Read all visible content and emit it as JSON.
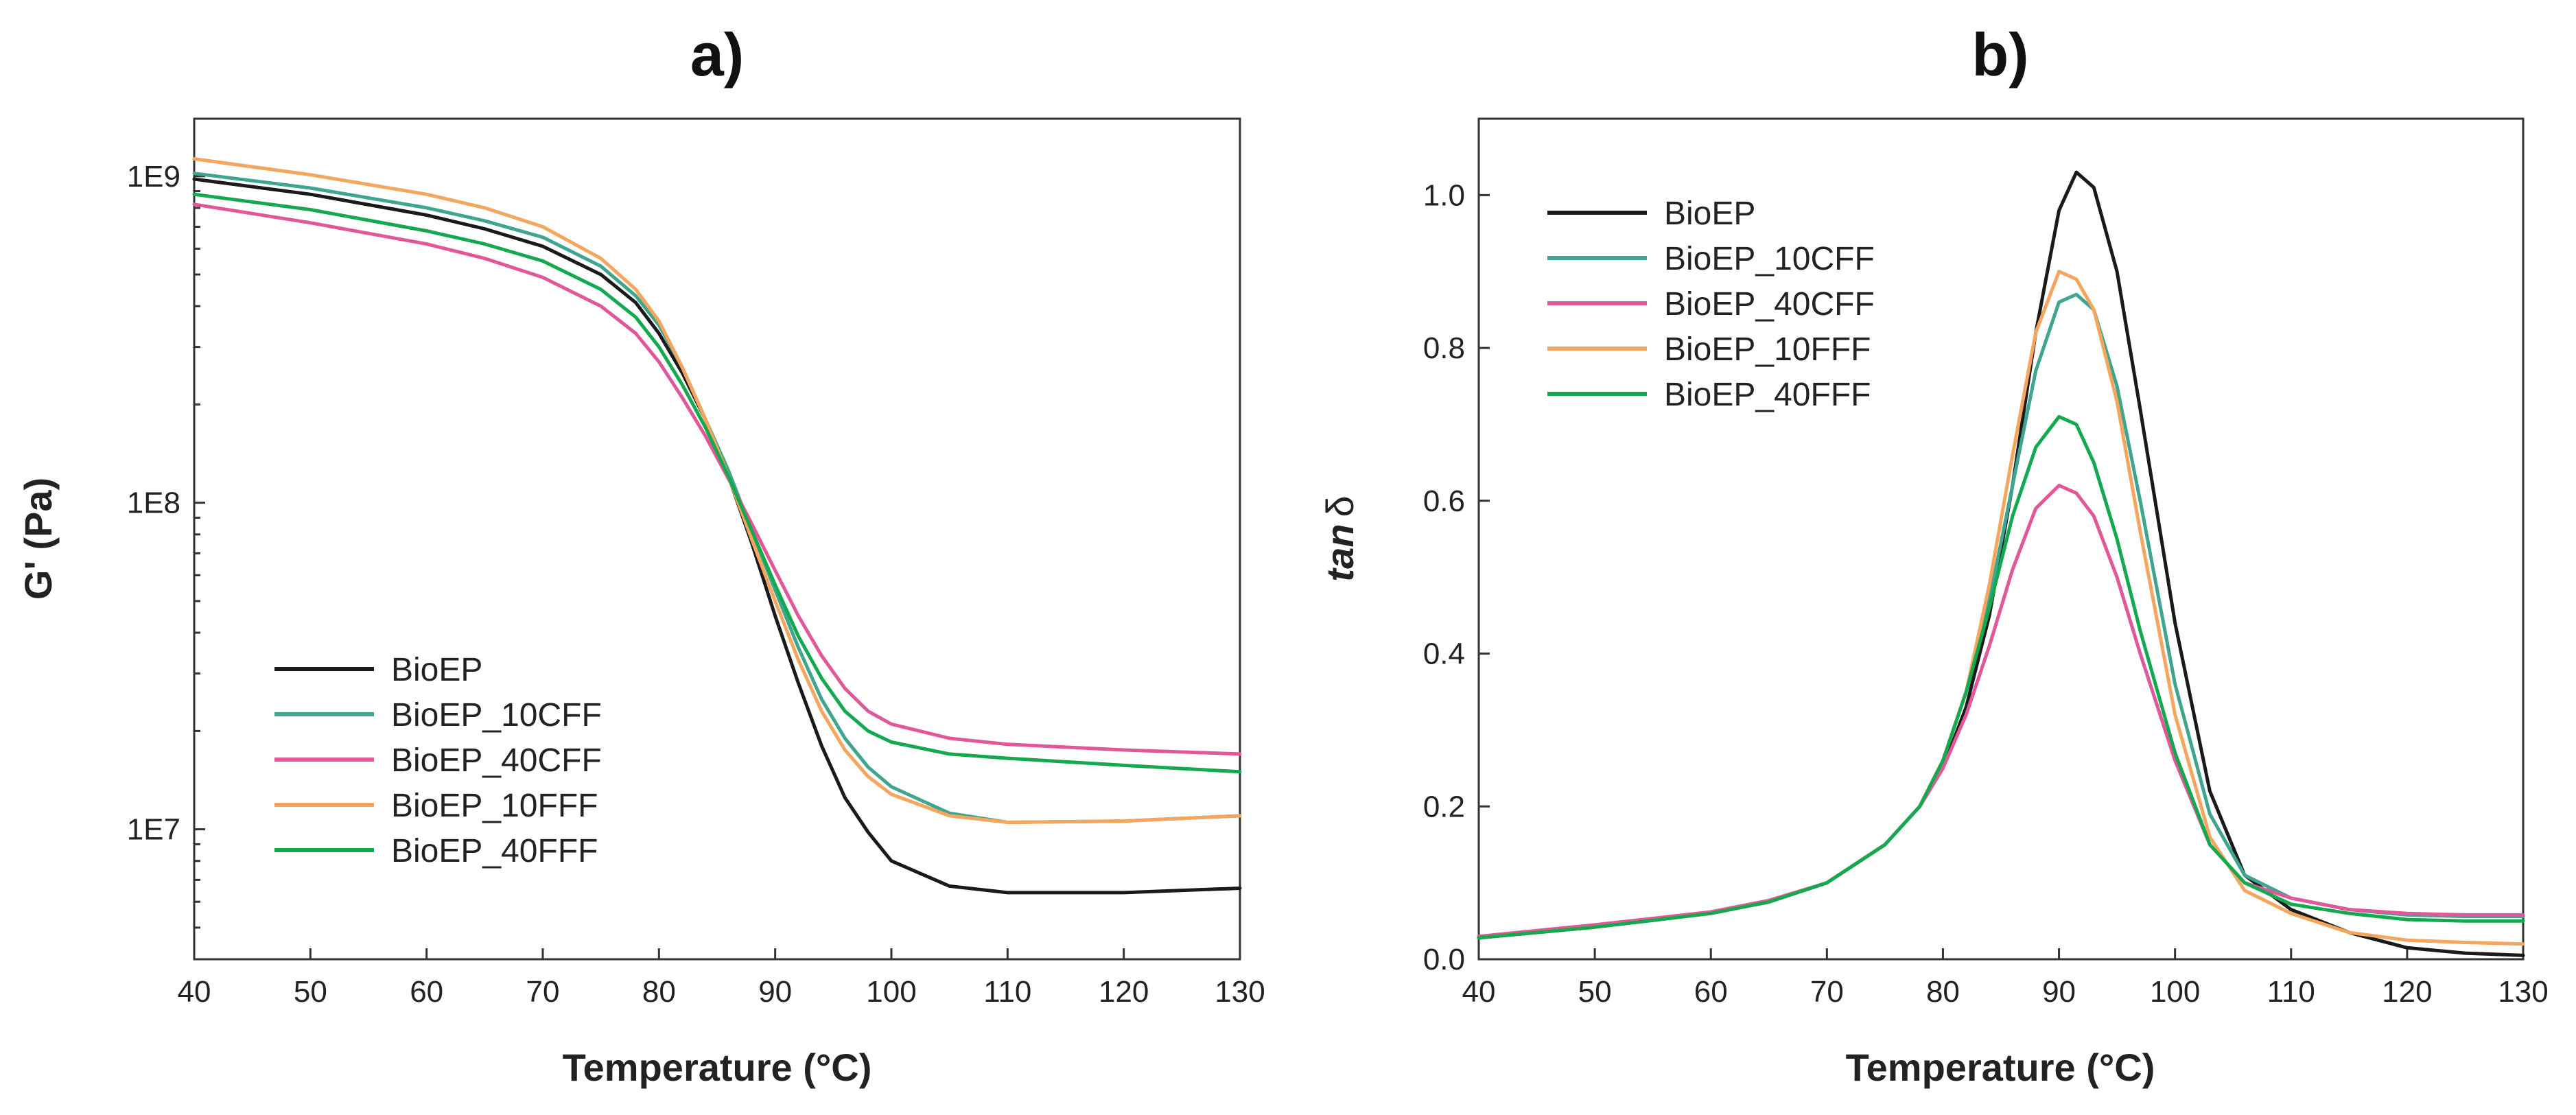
{
  "colors": {
    "BioEP": "#1a1a1a",
    "BioEP_10CFF": "#3fa58e",
    "BioEP_40CFF": "#e0579a",
    "BioEP_10FFF": "#f4a55e",
    "BioEP_40FFF": "#14a84f"
  },
  "chart_data": [
    {
      "type": "line",
      "panel_label": "a)",
      "xlabel": "Temperature (°C)",
      "ylabel": "G' (Pa)",
      "yscale": "log",
      "xlim": [
        40,
        130
      ],
      "ylim": [
        4000000,
        1500000000
      ],
      "xticks": [
        40,
        50,
        60,
        70,
        80,
        90,
        100,
        110,
        120,
        130
      ],
      "xtick_labels": [
        "40",
        "50",
        "60",
        "70",
        "80",
        "90",
        "100",
        "110",
        "120",
        "130"
      ],
      "yticks": [
        10000000,
        100000000,
        1000000000
      ],
      "ytick_labels": [
        "1E7",
        "1E8",
        "1E9"
      ],
      "legend": {
        "position": "lower-left",
        "entries": [
          "BioEP",
          "BioEP_10CFF",
          "BioEP_40CFF",
          "BioEP_10FFF",
          "BioEP_40FFF"
        ]
      },
      "series": [
        {
          "name": "BioEP",
          "x": [
            40,
            50,
            60,
            65,
            70,
            75,
            78,
            80,
            82,
            84,
            86,
            88,
            90,
            92,
            94,
            96,
            98,
            100,
            105,
            110,
            120,
            130
          ],
          "y": [
            980000000,
            880000000,
            760000000,
            690000000,
            610000000,
            500000000,
            410000000,
            330000000,
            250000000,
            180000000,
            120000000,
            75000000,
            45000000,
            28000000,
            18000000,
            12500000,
            9800000,
            8000000,
            6700000,
            6400000,
            6400000,
            6600000
          ]
        },
        {
          "name": "BioEP_10CFF",
          "x": [
            40,
            50,
            60,
            65,
            70,
            75,
            78,
            80,
            82,
            84,
            86,
            88,
            90,
            92,
            94,
            96,
            98,
            100,
            105,
            110,
            120,
            130
          ],
          "y": [
            1020000000,
            920000000,
            800000000,
            730000000,
            650000000,
            530000000,
            430000000,
            350000000,
            260000000,
            180000000,
            125000000,
            82000000,
            54000000,
            36000000,
            25000000,
            19000000,
            15500000,
            13500000,
            11200000,
            10500000,
            10600000,
            11000000
          ]
        },
        {
          "name": "BioEP_40CFF",
          "x": [
            40,
            50,
            60,
            65,
            70,
            75,
            78,
            80,
            82,
            84,
            86,
            88,
            90,
            92,
            94,
            96,
            98,
            100,
            105,
            110,
            120,
            130
          ],
          "y": [
            820000000,
            720000000,
            620000000,
            560000000,
            490000000,
            400000000,
            330000000,
            270000000,
            210000000,
            160000000,
            118000000,
            86000000,
            62000000,
            45000000,
            34000000,
            27000000,
            23000000,
            21000000,
            19000000,
            18200000,
            17500000,
            17000000
          ]
        },
        {
          "name": "BioEP_10FFF",
          "x": [
            40,
            50,
            60,
            65,
            70,
            75,
            78,
            80,
            82,
            84,
            86,
            88,
            90,
            92,
            94,
            96,
            98,
            100,
            105,
            110,
            120,
            130
          ],
          "y": [
            1130000000,
            1010000000,
            880000000,
            800000000,
            700000000,
            560000000,
            450000000,
            360000000,
            260000000,
            180000000,
            120000000,
            77000000,
            50000000,
            33000000,
            23000000,
            17500000,
            14500000,
            12800000,
            11000000,
            10500000,
            10600000,
            11000000
          ]
        },
        {
          "name": "BioEP_40FFF",
          "x": [
            40,
            50,
            60,
            65,
            70,
            75,
            78,
            80,
            82,
            84,
            86,
            88,
            90,
            92,
            94,
            96,
            98,
            100,
            105,
            110,
            120,
            130
          ],
          "y": [
            880000000,
            790000000,
            680000000,
            620000000,
            550000000,
            450000000,
            370000000,
            300000000,
            230000000,
            170000000,
            120000000,
            82000000,
            56000000,
            39000000,
            29000000,
            23000000,
            20000000,
            18500000,
            17000000,
            16500000,
            15700000,
            15000000
          ]
        }
      ]
    },
    {
      "type": "line",
      "panel_label": "b)",
      "xlabel": "Temperature (°C)",
      "ylabel_main": "tan",
      "ylabel_symbol": "δ",
      "xlim": [
        40,
        130
      ],
      "ylim": [
        0,
        1.1
      ],
      "xticks": [
        40,
        50,
        60,
        70,
        80,
        90,
        100,
        110,
        120,
        130
      ],
      "xtick_labels": [
        "40",
        "50",
        "60",
        "70",
        "80",
        "90",
        "100",
        "110",
        "120",
        "130"
      ],
      "yticks": [
        0,
        0.2,
        0.4,
        0.6,
        0.8,
        1.0
      ],
      "ytick_labels": [
        "0.0",
        "0.2",
        "0.4",
        "0.6",
        "0.8",
        "1.0"
      ],
      "legend": {
        "position": "top-left",
        "entries": [
          "BioEP",
          "BioEP_10CFF",
          "BioEP_40CFF",
          "BioEP_10FFF",
          "BioEP_40FFF"
        ]
      },
      "series": [
        {
          "name": "BioEP",
          "x": [
            40,
            50,
            60,
            65,
            70,
            75,
            78,
            80,
            82,
            84,
            86,
            88,
            90,
            91.5,
            93,
            95,
            97,
            100,
            103,
            106,
            110,
            115,
            120,
            125,
            130
          ],
          "y": [
            0.028,
            0.042,
            0.06,
            0.075,
            0.1,
            0.15,
            0.2,
            0.25,
            0.33,
            0.45,
            0.62,
            0.82,
            0.98,
            1.03,
            1.01,
            0.9,
            0.72,
            0.44,
            0.22,
            0.11,
            0.065,
            0.035,
            0.015,
            0.008,
            0.005
          ]
        },
        {
          "name": "BioEP_10CFF",
          "x": [
            40,
            50,
            60,
            65,
            70,
            75,
            78,
            80,
            82,
            84,
            86,
            88,
            90,
            91.5,
            93,
            95,
            97,
            100,
            103,
            106,
            110,
            115,
            120,
            125,
            130
          ],
          "y": [
            0.028,
            0.042,
            0.06,
            0.075,
            0.1,
            0.15,
            0.2,
            0.26,
            0.35,
            0.47,
            0.62,
            0.77,
            0.86,
            0.87,
            0.85,
            0.75,
            0.6,
            0.36,
            0.19,
            0.11,
            0.08,
            0.065,
            0.058,
            0.056,
            0.056
          ]
        },
        {
          "name": "BioEP_40CFF",
          "x": [
            40,
            50,
            60,
            65,
            70,
            75,
            78,
            80,
            82,
            84,
            86,
            88,
            90,
            91.5,
            93,
            95,
            97,
            100,
            103,
            106,
            110,
            115,
            120,
            125,
            130
          ],
          "y": [
            0.03,
            0.045,
            0.062,
            0.077,
            0.1,
            0.15,
            0.2,
            0.25,
            0.32,
            0.41,
            0.51,
            0.59,
            0.62,
            0.61,
            0.58,
            0.5,
            0.4,
            0.26,
            0.15,
            0.1,
            0.08,
            0.065,
            0.06,
            0.058,
            0.058
          ]
        },
        {
          "name": "BioEP_10FFF",
          "x": [
            40,
            50,
            60,
            65,
            70,
            75,
            78,
            80,
            82,
            84,
            86,
            88,
            90,
            91.5,
            93,
            95,
            97,
            100,
            103,
            106,
            110,
            115,
            120,
            125,
            130
          ],
          "y": [
            0.028,
            0.042,
            0.06,
            0.075,
            0.1,
            0.15,
            0.2,
            0.26,
            0.35,
            0.49,
            0.66,
            0.82,
            0.9,
            0.89,
            0.85,
            0.73,
            0.56,
            0.32,
            0.16,
            0.09,
            0.06,
            0.035,
            0.025,
            0.022,
            0.02
          ]
        },
        {
          "name": "BioEP_40FFF",
          "x": [
            40,
            50,
            60,
            65,
            70,
            75,
            78,
            80,
            82,
            84,
            86,
            88,
            90,
            91.5,
            93,
            95,
            97,
            100,
            103,
            106,
            110,
            115,
            120,
            125,
            130
          ],
          "y": [
            0.028,
            0.042,
            0.06,
            0.075,
            0.1,
            0.15,
            0.2,
            0.26,
            0.35,
            0.46,
            0.58,
            0.67,
            0.71,
            0.7,
            0.65,
            0.55,
            0.43,
            0.27,
            0.15,
            0.1,
            0.072,
            0.06,
            0.052,
            0.05,
            0.05
          ]
        }
      ]
    }
  ]
}
